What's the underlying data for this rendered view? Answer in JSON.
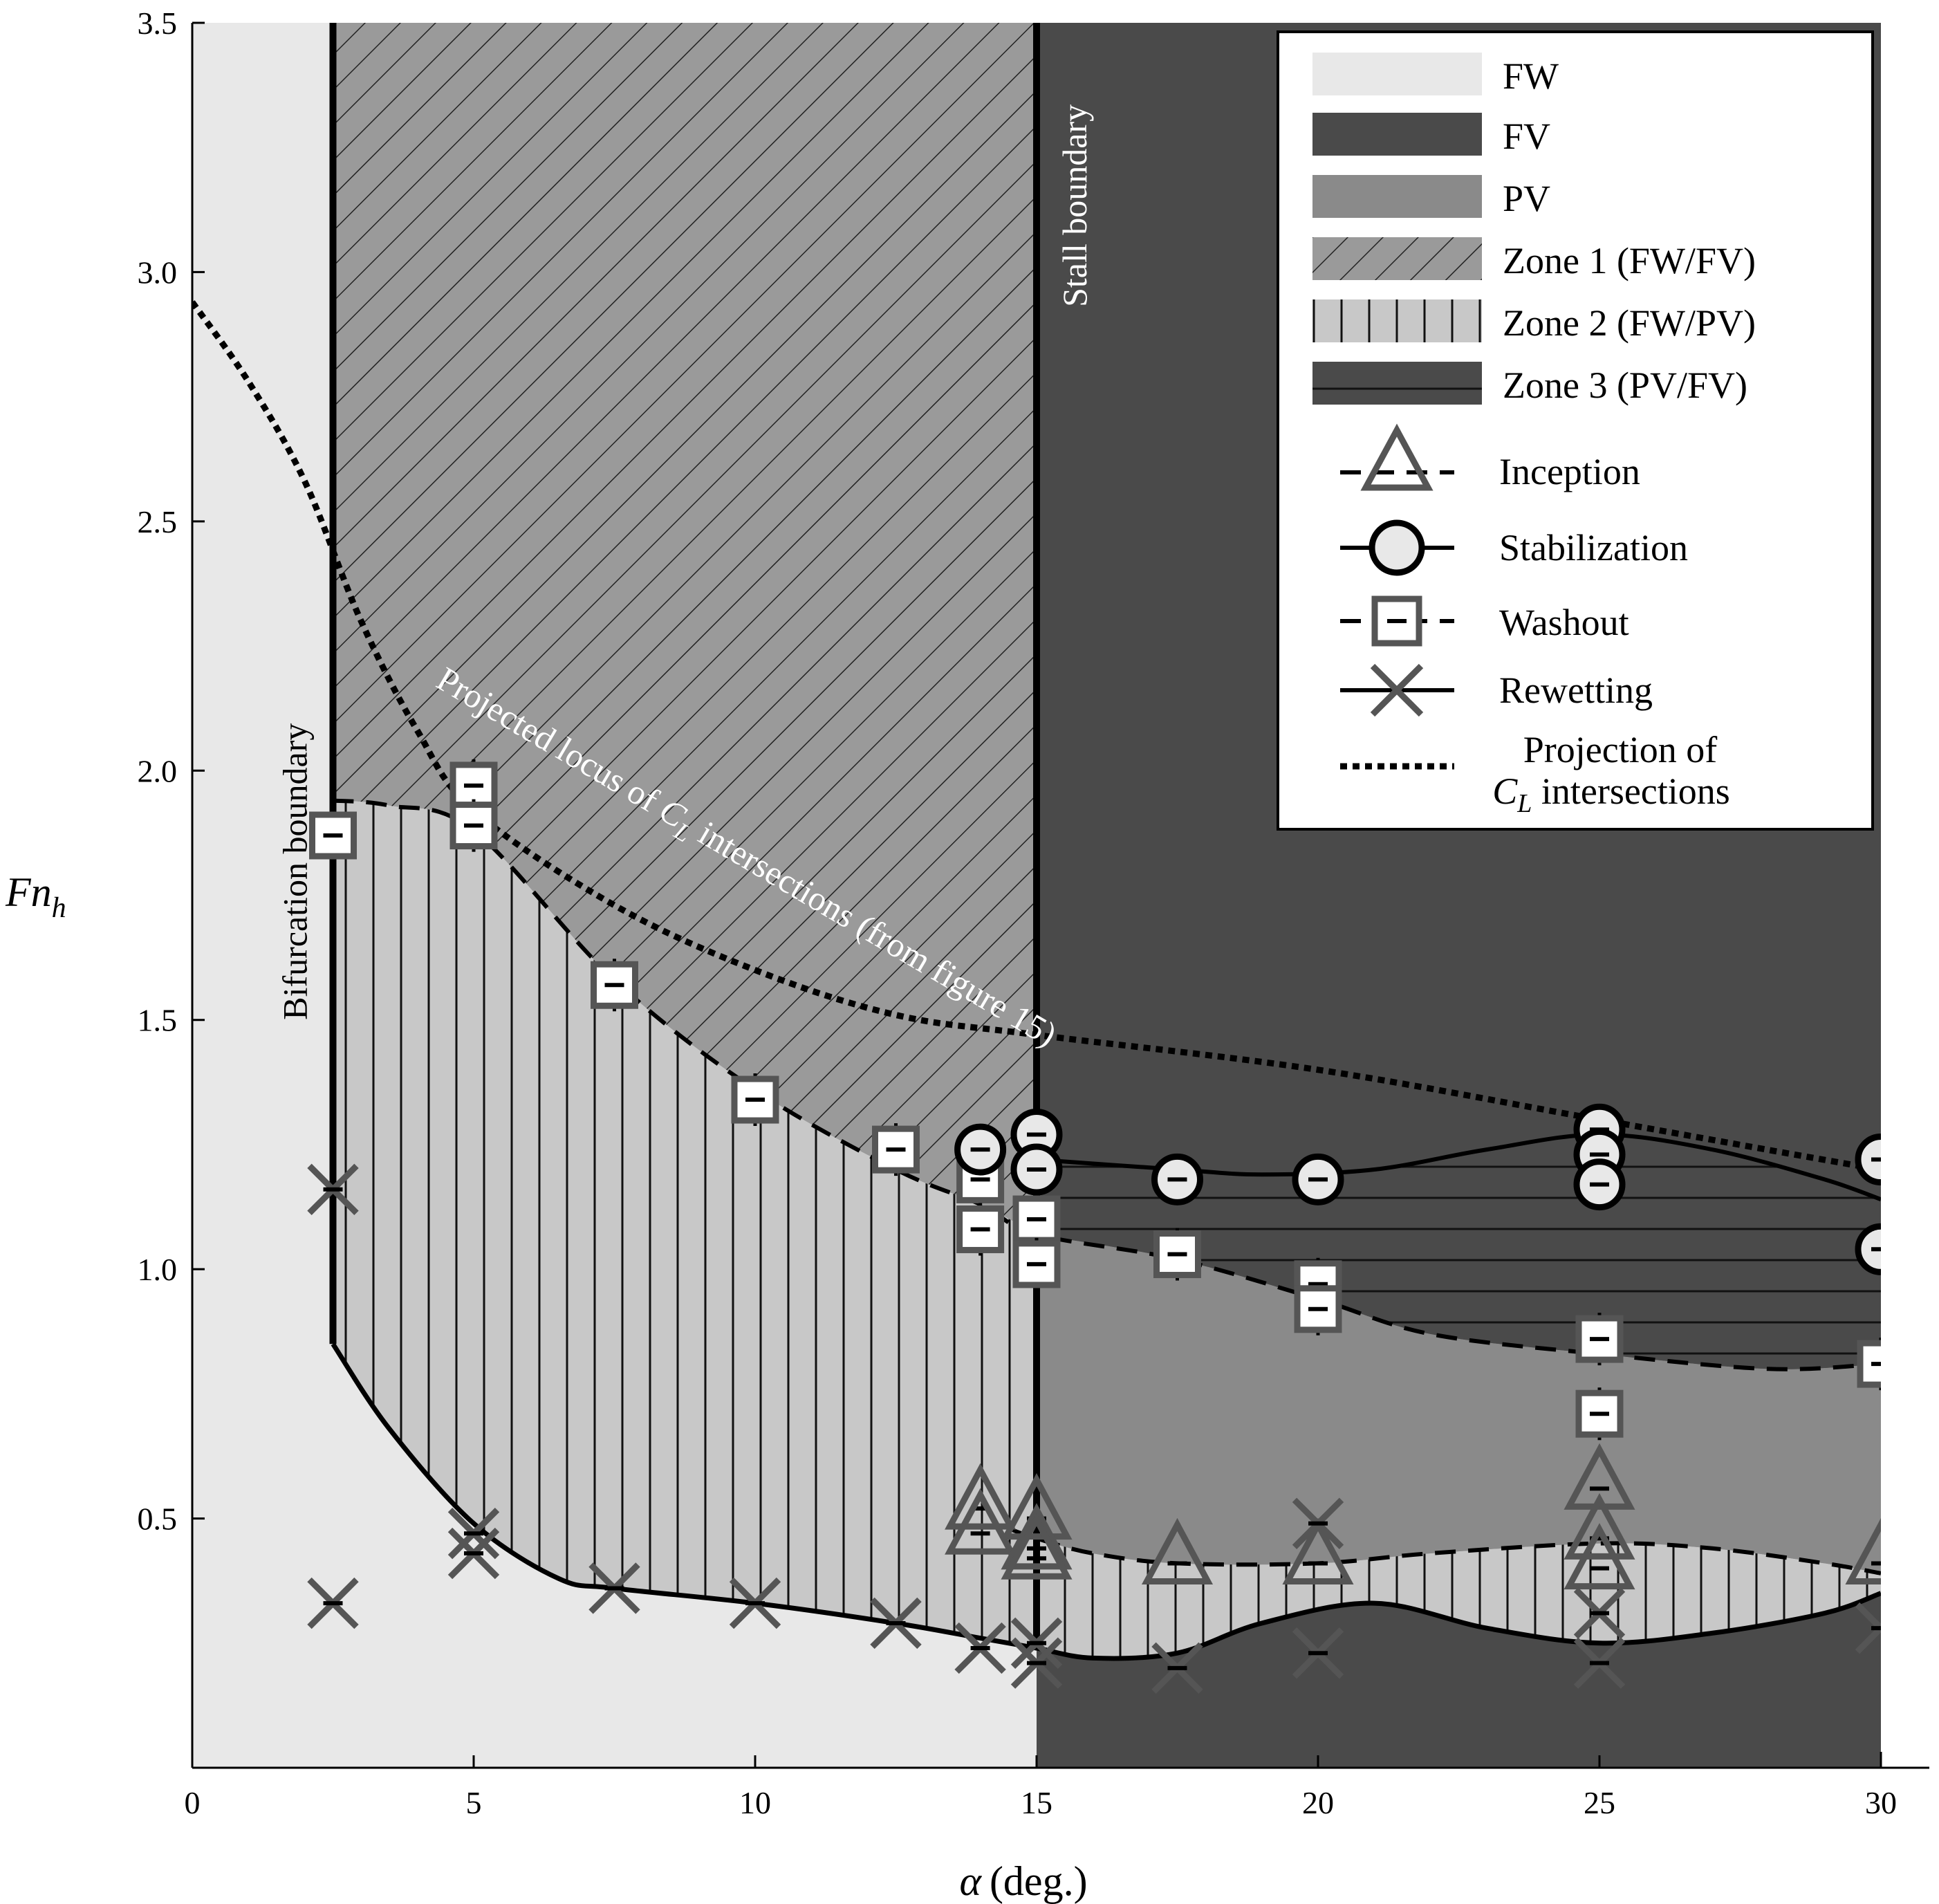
{
  "chart_data": {
    "type": "region-map",
    "xlabel_sym": "α",
    "xlabel_unit": "(deg.)",
    "ylabel_main": "Fn",
    "ylabel_sub": "h",
    "xlim": [
      0,
      30
    ],
    "ylim": [
      0,
      3.5
    ],
    "xticks": [
      0,
      5,
      10,
      15,
      20,
      25,
      30
    ],
    "yticks": [
      0.5,
      1.0,
      1.5,
      2.0,
      2.5,
      3.0,
      3.5
    ],
    "xtick_labels": [
      "0",
      "5",
      "10",
      "15",
      "20",
      "25",
      "30"
    ],
    "ytick_labels": [
      "0.5",
      "1.0",
      "1.5",
      "2.0",
      "2.5",
      "3.0",
      "3.5"
    ],
    "colors": {
      "FW": "#e8e8e8",
      "FV": "#4a4a4a",
      "PV": "#8a8a8a",
      "zone1": "#9a9a9a",
      "zone2": "#c8c8c8",
      "zone3": "#4a4a4a",
      "marker": "#555555"
    },
    "boundaries": {
      "bifurcation_alpha": 2.5,
      "stall_alpha": 15,
      "bifurcation_label": "Bifurcation boundary",
      "stall_label": "Stall boundary"
    },
    "curves": {
      "washout": [
        [
          2.5,
          1.94
        ],
        [
          3.5,
          1.93
        ],
        [
          5,
          1.88
        ],
        [
          7.5,
          1.58
        ],
        [
          10,
          1.36
        ],
        [
          12.5,
          1.2
        ],
        [
          14,
          1.13
        ],
        [
          15,
          1.07
        ],
        [
          17.5,
          1.02
        ],
        [
          20,
          0.94
        ],
        [
          22,
          0.87
        ],
        [
          25,
          0.83
        ],
        [
          28,
          0.8
        ],
        [
          30,
          0.81
        ]
      ],
      "rewetting": [
        [
          2.5,
          0.85
        ],
        [
          3.5,
          0.68
        ],
        [
          5,
          0.49
        ],
        [
          6.5,
          0.38
        ],
        [
          7.5,
          0.36
        ],
        [
          10,
          0.33
        ],
        [
          12.5,
          0.29
        ],
        [
          14,
          0.26
        ],
        [
          15,
          0.24
        ],
        [
          16,
          0.22
        ],
        [
          17.5,
          0.23
        ],
        [
          19,
          0.29
        ],
        [
          21,
          0.33
        ],
        [
          23,
          0.28
        ],
        [
          25,
          0.25
        ],
        [
          27,
          0.27
        ],
        [
          29,
          0.31
        ],
        [
          30,
          0.35
        ]
      ],
      "inception": [
        [
          14.5,
          0.48
        ],
        [
          15,
          0.46
        ],
        [
          16,
          0.43
        ],
        [
          17.5,
          0.41
        ],
        [
          20,
          0.41
        ],
        [
          22,
          0.43
        ],
        [
          25,
          0.45
        ],
        [
          27,
          0.44
        ],
        [
          29,
          0.41
        ],
        [
          30,
          0.39
        ]
      ],
      "stabilization": [
        [
          15,
          1.22
        ],
        [
          17.5,
          1.2
        ],
        [
          19,
          1.19
        ],
        [
          21,
          1.2
        ],
        [
          23,
          1.24
        ],
        [
          25,
          1.27
        ],
        [
          27,
          1.24
        ],
        [
          29,
          1.18
        ],
        [
          30,
          1.14
        ]
      ],
      "projection": [
        [
          0,
          2.94
        ],
        [
          1,
          2.78
        ],
        [
          2,
          2.58
        ],
        [
          3,
          2.3
        ],
        [
          4,
          2.08
        ],
        [
          5,
          1.92
        ],
        [
          7.5,
          1.73
        ],
        [
          10,
          1.6
        ],
        [
          12.5,
          1.51
        ],
        [
          15,
          1.47
        ],
        [
          20,
          1.4
        ],
        [
          25,
          1.3
        ],
        [
          30,
          1.2
        ],
        [
          31,
          1.19
        ]
      ]
    },
    "markers": {
      "washout": [
        [
          2.5,
          1.87
        ],
        [
          5,
          1.97
        ],
        [
          5,
          1.89
        ],
        [
          7.5,
          1.57
        ],
        [
          10,
          1.34
        ],
        [
          12.5,
          1.24
        ],
        [
          14,
          1.18
        ],
        [
          14,
          1.08
        ],
        [
          15,
          1.1
        ],
        [
          15,
          1.01
        ],
        [
          17.5,
          1.03
        ],
        [
          20,
          0.97
        ],
        [
          20,
          0.92
        ],
        [
          25,
          0.86
        ],
        [
          25,
          0.71
        ],
        [
          30,
          0.81
        ]
      ],
      "stabilization": [
        [
          14,
          1.24
        ],
        [
          15,
          1.27
        ],
        [
          15,
          1.2
        ],
        [
          17.5,
          1.18
        ],
        [
          20,
          1.18
        ],
        [
          25,
          1.28
        ],
        [
          25,
          1.23
        ],
        [
          25,
          1.17
        ],
        [
          30,
          1.22
        ],
        [
          30,
          1.04
        ]
      ],
      "inception": [
        [
          14,
          0.52
        ],
        [
          14,
          0.47
        ],
        [
          15,
          0.5
        ],
        [
          15,
          0.44
        ],
        [
          15,
          0.42
        ],
        [
          17.5,
          0.41
        ],
        [
          20,
          0.41
        ],
        [
          25,
          0.56
        ],
        [
          25,
          0.46
        ],
        [
          25,
          0.4
        ],
        [
          30,
          0.41
        ]
      ],
      "rewetting": [
        [
          2.5,
          1.16
        ],
        [
          2.5,
          0.33
        ],
        [
          5,
          0.47
        ],
        [
          5,
          0.43
        ],
        [
          7.5,
          0.36
        ],
        [
          10,
          0.33
        ],
        [
          12.5,
          0.29
        ],
        [
          14,
          0.24
        ],
        [
          15,
          0.25
        ],
        [
          15,
          0.21
        ],
        [
          17.5,
          0.2
        ],
        [
          20,
          0.23
        ],
        [
          20,
          0.49
        ],
        [
          25,
          0.31
        ],
        [
          25,
          0.21
        ],
        [
          30,
          0.28
        ]
      ]
    },
    "legend": [
      {
        "label": "FW"
      },
      {
        "label": "FV"
      },
      {
        "label": "PV"
      },
      {
        "label": "Zone 1 (FW/FV)"
      },
      {
        "label": "Zone 2 (FW/PV)"
      },
      {
        "label": "Zone 3 (PV/FV)"
      },
      {
        "label": "Inception"
      },
      {
        "label": "Stabilization"
      },
      {
        "label": "Washout"
      },
      {
        "label": "Rewetting"
      },
      {
        "label": "Projection of"
      },
      {
        "label_pre": "C",
        "label_sub": "L",
        "label_post": " intersections"
      }
    ],
    "annotation": {
      "pre": "Projected locus of ",
      "sym": "C",
      "sub": "L",
      "post": " intersections  (from figure 15)"
    }
  }
}
